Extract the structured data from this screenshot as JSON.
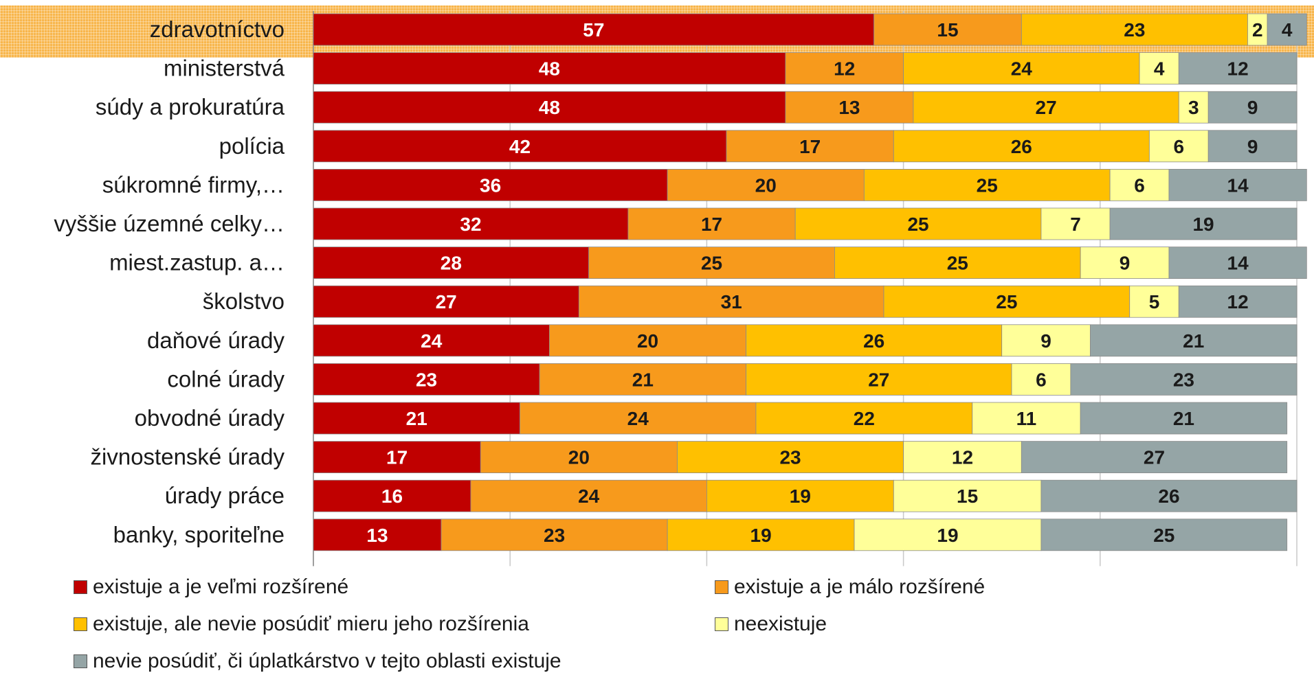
{
  "chart_data": {
    "type": "bar",
    "orientation": "horizontal",
    "stacked": true,
    "xlim": [
      0,
      100
    ],
    "grid": true,
    "legend_position": "bottom",
    "highlighted_category": "zdravotníctvo",
    "categories": [
      "zdravotníctvo",
      "ministerstvá",
      "súdy a prokuratúra",
      "polícia",
      "súkromné firmy,…",
      "vyššie územné celky…",
      "miest.zastup. a…",
      "školstvo",
      "daňové úrady",
      "colné úrady",
      "obvodné úrady",
      "živnostenské úrady",
      "úrady práce",
      "banky, sporiteľne"
    ],
    "series": [
      {
        "name": "existuje a je veľmi rozšírené",
        "color": "#c00000",
        "label_color": "#ffffff",
        "values": [
          57,
          48,
          48,
          42,
          36,
          32,
          28,
          27,
          24,
          23,
          21,
          17,
          16,
          13
        ]
      },
      {
        "name": "existuje a je málo rozšírené",
        "color": "#f79a1c",
        "label_color": "#1a1a1a",
        "values": [
          15,
          12,
          13,
          17,
          20,
          17,
          25,
          31,
          20,
          21,
          24,
          20,
          24,
          23
        ]
      },
      {
        "name": "existuje, ale nevie posúdiť mieru jeho rozšírenia",
        "color": "#ffc000",
        "label_color": "#1a1a1a",
        "values": [
          23,
          24,
          27,
          26,
          25,
          25,
          25,
          25,
          26,
          27,
          22,
          23,
          19,
          19
        ]
      },
      {
        "name": "neexistuje",
        "color": "#ffff99",
        "label_color": "#1a1a1a",
        "values": [
          2,
          4,
          3,
          6,
          6,
          7,
          9,
          5,
          9,
          6,
          11,
          12,
          15,
          19
        ]
      },
      {
        "name": "nevie posúdiť, či úplatkárstvo v tejto oblasti existuje",
        "color": "#95a5a6",
        "label_color": "#1a1a1a",
        "values": [
          4,
          12,
          9,
          9,
          14,
          19,
          14,
          12,
          21,
          23,
          21,
          27,
          26,
          25
        ]
      }
    ]
  }
}
